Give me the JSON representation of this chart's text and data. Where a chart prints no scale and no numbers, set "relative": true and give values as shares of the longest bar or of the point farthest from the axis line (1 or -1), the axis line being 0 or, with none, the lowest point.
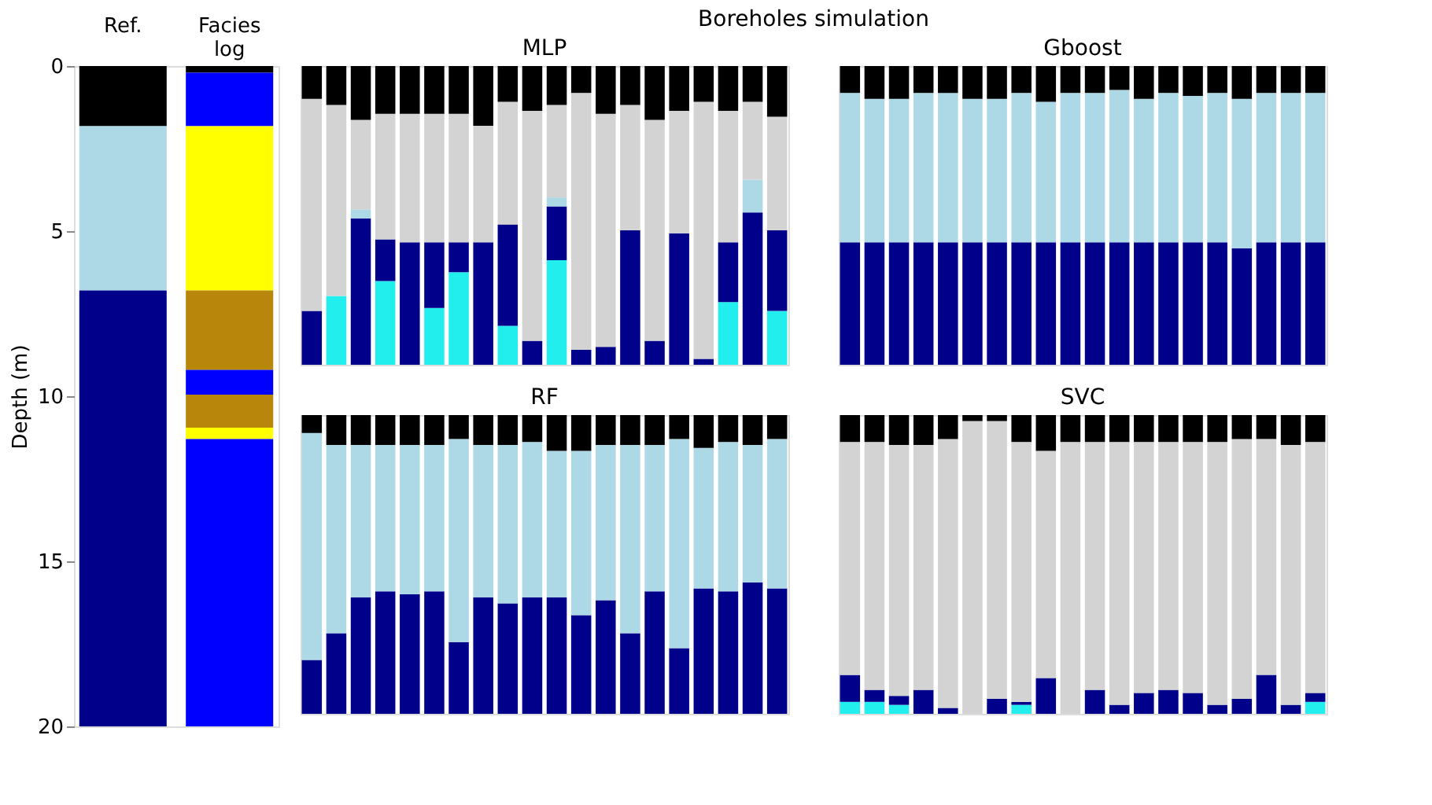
{
  "chart_data": [
    {
      "type": "bar",
      "stacked": true,
      "ylabel": "Depth (m)",
      "categories": [
        "Ref.",
        "Facies log"
      ],
      "ylim": [
        20,
        0
      ],
      "yticks": [
        0,
        5,
        10,
        15,
        20
      ],
      "series": [
        {
          "values": [
            1.82,
            0.2
          ],
          "colors": [
            "#000000",
            "#000000"
          ]
        },
        {
          "values": [
            4.98,
            1.62
          ],
          "colors": [
            "#add8e6",
            "#0000ff"
          ]
        },
        {
          "values": [
            13.2,
            4.98
          ],
          "colors": [
            "#00008b",
            "#ffff00"
          ]
        },
        {
          "values": [
            null,
            2.4
          ],
          "colors": [
            "#00008b",
            "#b8860b"
          ]
        },
        {
          "values": [
            null,
            0.75
          ],
          "colors": [
            "#00008b",
            "#0000ff"
          ]
        },
        {
          "values": [
            null,
            1.0
          ],
          "colors": [
            "#00008b",
            "#b8860b"
          ]
        },
        {
          "values": [
            null,
            0.35
          ],
          "colors": [
            "#00008b",
            "#ffff00"
          ]
        },
        {
          "values": [
            null,
            8.7
          ],
          "colors": [
            "#00008b",
            "#0000ff"
          ]
        }
      ]
    },
    {
      "type": "bar",
      "stacked": true,
      "relative": true,
      "title": "MLP",
      "annotations": [
        "Boreholes simulation"
      ],
      "tick_labels": false,
      "categories": [
        null,
        null,
        null,
        null,
        null,
        null,
        null,
        null,
        null,
        null,
        null,
        null,
        null,
        null,
        null,
        null,
        null,
        null,
        null,
        null
      ],
      "series": [
        {
          "color": "#22eeee",
          "values": [
            0,
            0.23,
            0,
            0.28,
            0,
            0.19,
            0.31,
            0,
            0.13,
            0,
            0.35,
            0,
            0,
            0,
            0,
            0,
            0,
            0.21,
            0,
            0.18
          ]
        },
        {
          "color": "#00008b",
          "values": [
            0.18,
            0,
            0.49,
            0.14,
            0.41,
            0.22,
            0.1,
            0.41,
            0.34,
            0.08,
            0.18,
            0.05,
            0.06,
            0.45,
            0.08,
            0.44,
            0.02,
            0.2,
            0.51,
            0.27
          ]
        },
        {
          "color": "#add8e6",
          "values": [
            0,
            0,
            0.03,
            0,
            0,
            0,
            0,
            0,
            0,
            0,
            0.03,
            0,
            0,
            0,
            0,
            0,
            0,
            0,
            0.11,
            0
          ]
        },
        {
          "color": "#d3d3d3",
          "values": [
            0.71,
            0.64,
            0.3,
            0.42,
            0.43,
            0.43,
            0.43,
            0.39,
            0.41,
            0.77,
            0.31,
            0.86,
            0.78,
            0.42,
            0.74,
            0.41,
            0.86,
            0.44,
            0.26,
            0.38
          ]
        },
        {
          "color": "#000000",
          "values": [
            0.11,
            0.13,
            0.18,
            0.16,
            0.16,
            0.16,
            0.16,
            0.2,
            0.12,
            0.15,
            0.13,
            0.09,
            0.16,
            0.13,
            0.18,
            0.15,
            0.12,
            0.15,
            0.12,
            0.17
          ]
        }
      ]
    },
    {
      "type": "bar",
      "stacked": true,
      "relative": true,
      "title": "Gboost",
      "tick_labels": false,
      "categories": [
        null,
        null,
        null,
        null,
        null,
        null,
        null,
        null,
        null,
        null,
        null,
        null,
        null,
        null,
        null,
        null,
        null,
        null,
        null,
        null
      ],
      "series": [
        {
          "color": "#00008b",
          "values": [
            0.41,
            0.41,
            0.41,
            0.41,
            0.41,
            0.41,
            0.41,
            0.41,
            0.41,
            0.41,
            0.41,
            0.41,
            0.41,
            0.41,
            0.41,
            0.41,
            0.39,
            0.41,
            0.41,
            0.41
          ]
        },
        {
          "color": "#add8e6",
          "values": [
            0.5,
            0.48,
            0.48,
            0.5,
            0.5,
            0.48,
            0.48,
            0.5,
            0.47,
            0.5,
            0.5,
            0.51,
            0.48,
            0.5,
            0.49,
            0.5,
            0.5,
            0.5,
            0.5,
            0.5
          ]
        },
        {
          "color": "#000000",
          "values": [
            0.09,
            0.11,
            0.11,
            0.09,
            0.09,
            0.11,
            0.11,
            0.09,
            0.12,
            0.09,
            0.09,
            0.08,
            0.11,
            0.09,
            0.1,
            0.09,
            0.11,
            0.09,
            0.09,
            0.09
          ]
        }
      ]
    },
    {
      "type": "bar",
      "stacked": true,
      "relative": true,
      "title": "RF",
      "tick_labels": false,
      "categories": [
        null,
        null,
        null,
        null,
        null,
        null,
        null,
        null,
        null,
        null,
        null,
        null,
        null,
        null,
        null,
        null,
        null,
        null,
        null,
        null
      ],
      "series": [
        {
          "color": "#00008b",
          "values": [
            0.18,
            0.27,
            0.39,
            0.41,
            0.4,
            0.41,
            0.24,
            0.39,
            0.37,
            0.39,
            0.39,
            0.33,
            0.38,
            0.27,
            0.41,
            0.22,
            0.42,
            0.41,
            0.44,
            0.42
          ]
        },
        {
          "color": "#add8e6",
          "values": [
            0.76,
            0.63,
            0.51,
            0.49,
            0.5,
            0.49,
            0.68,
            0.51,
            0.53,
            0.52,
            0.49,
            0.55,
            0.52,
            0.63,
            0.49,
            0.7,
            0.47,
            0.5,
            0.46,
            0.5
          ]
        },
        {
          "color": "#000000",
          "values": [
            0.06,
            0.1,
            0.1,
            0.1,
            0.1,
            0.1,
            0.08,
            0.1,
            0.1,
            0.09,
            0.12,
            0.12,
            0.1,
            0.1,
            0.1,
            0.08,
            0.11,
            0.09,
            0.1,
            0.08
          ]
        }
      ]
    },
    {
      "type": "bar",
      "stacked": true,
      "relative": true,
      "title": "SVC",
      "tick_labels": false,
      "categories": [
        null,
        null,
        null,
        null,
        null,
        null,
        null,
        null,
        null,
        null,
        null,
        null,
        null,
        null,
        null,
        null,
        null,
        null,
        null,
        null
      ],
      "series": [
        {
          "color": "#22eeee",
          "values": [
            0.04,
            0.04,
            0.03,
            0,
            0,
            0,
            0,
            0.03,
            0,
            0,
            0,
            0,
            0,
            0,
            0,
            0,
            0,
            0,
            0,
            0.04
          ]
        },
        {
          "color": "#00008b",
          "values": [
            0.09,
            0.04,
            0.03,
            0.08,
            0.02,
            0,
            0.05,
            0.01,
            0.12,
            0,
            0.08,
            0.03,
            0.07,
            0.08,
            0.07,
            0.03,
            0.05,
            0.13,
            0.03,
            0.03
          ]
        },
        {
          "color": "#d3d3d3",
          "values": [
            0.78,
            0.83,
            0.84,
            0.82,
            0.9,
            0.98,
            0.93,
            0.87,
            0.76,
            0.91,
            0.83,
            0.88,
            0.84,
            0.83,
            0.84,
            0.88,
            0.87,
            0.79,
            0.87,
            0.84
          ]
        },
        {
          "color": "#000000",
          "values": [
            0.09,
            0.09,
            0.1,
            0.1,
            0.08,
            0.02,
            0.02,
            0.09,
            0.12,
            0.09,
            0.09,
            0.09,
            0.09,
            0.09,
            0.09,
            0.09,
            0.08,
            0.08,
            0.1,
            0.09
          ]
        }
      ]
    }
  ]
}
